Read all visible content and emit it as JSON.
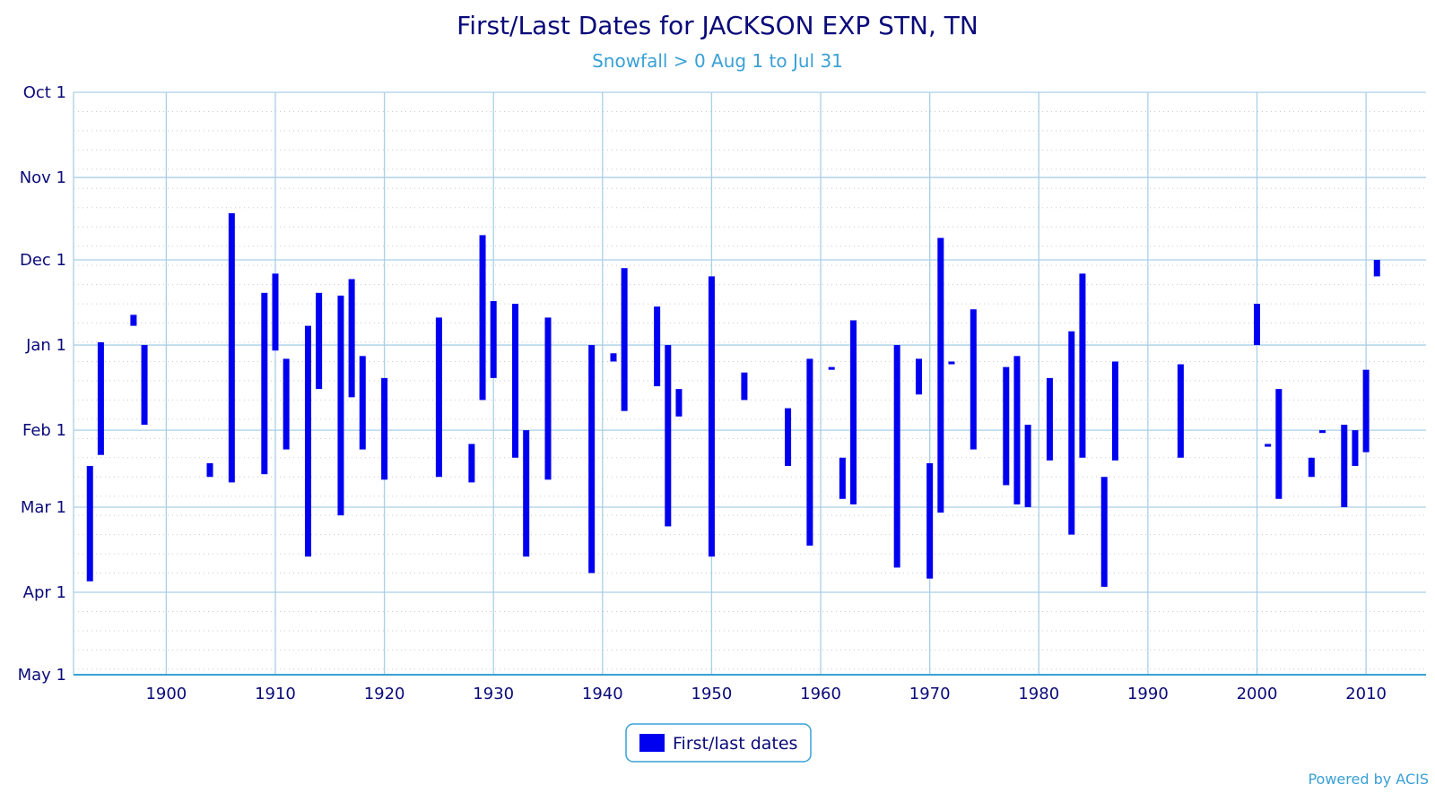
{
  "chart_data": {
    "type": "bar",
    "title": "First/Last Dates for JACKSON EXP STN, TN",
    "subtitle": "Snowfall > 0 Aug 1 to Jul 31",
    "legend": "First/last dates",
    "legend_position": "bottom-center",
    "credit": "Powered by ACIS",
    "y_axis": {
      "ticks": [
        "Oct 1",
        "Nov 1",
        "Dec 1",
        "Jan 1",
        "Feb 1",
        "Mar 1",
        "Apr 1",
        "May 1"
      ],
      "range_days_from_oct1": [
        0,
        212
      ]
    },
    "x_axis": {
      "ticks": [
        1900,
        1910,
        1920,
        1930,
        1940,
        1950,
        1960,
        1970,
        1980,
        1990,
        2000,
        2010
      ],
      "range": [
        1891.5,
        2015.5
      ]
    },
    "grid": true,
    "colors": {
      "bar": "#0000f0",
      "grid": "#aacfe6",
      "title": "#0a0a7a",
      "subtitle": "#39a0d6"
    },
    "series": [
      {
        "name": "First/last dates",
        "points": [
          {
            "year": 1893,
            "first": "Feb 14",
            "last": "Mar 28"
          },
          {
            "year": 1894,
            "first": "Dec 31",
            "last": "Feb 10"
          },
          {
            "year": 1897,
            "first": "Dec 21",
            "last": "Dec 25"
          },
          {
            "year": 1898,
            "first": "Jan 1",
            "last": "Jan 30"
          },
          {
            "year": 1904,
            "first": "Feb 13",
            "last": "Feb 18"
          },
          {
            "year": 1906,
            "first": "Nov 14",
            "last": "Feb 20"
          },
          {
            "year": 1909,
            "first": "Dec 13",
            "last": "Feb 17"
          },
          {
            "year": 1910,
            "first": "Dec 6",
            "last": "Jan 3"
          },
          {
            "year": 1911,
            "first": "Jan 6",
            "last": "Feb 8"
          },
          {
            "year": 1913,
            "first": "Dec 25",
            "last": "Mar 19"
          },
          {
            "year": 1914,
            "first": "Dec 13",
            "last": "Jan 17"
          },
          {
            "year": 1916,
            "first": "Dec 14",
            "last": "Mar 4"
          },
          {
            "year": 1917,
            "first": "Dec 8",
            "last": "Jan 20"
          },
          {
            "year": 1918,
            "first": "Jan 5",
            "last": "Feb 8"
          },
          {
            "year": 1920,
            "first": "Jan 13",
            "last": "Feb 19"
          },
          {
            "year": 1925,
            "first": "Dec 22",
            "last": "Feb 18"
          },
          {
            "year": 1928,
            "first": "Feb 6",
            "last": "Feb 20"
          },
          {
            "year": 1929,
            "first": "Nov 22",
            "last": "Jan 21"
          },
          {
            "year": 1930,
            "first": "Dec 16",
            "last": "Jan 13"
          },
          {
            "year": 1932,
            "first": "Dec 17",
            "last": "Feb 11"
          },
          {
            "year": 1933,
            "first": "Feb 1",
            "last": "Mar 19"
          },
          {
            "year": 1935,
            "first": "Dec 22",
            "last": "Feb 19"
          },
          {
            "year": 1939,
            "first": "Jan 1",
            "last": "Mar 25"
          },
          {
            "year": 1941,
            "first": "Jan 4",
            "last": "Jan 7"
          },
          {
            "year": 1942,
            "first": "Dec 4",
            "last": "Jan 25"
          },
          {
            "year": 1945,
            "first": "Dec 18",
            "last": "Jan 16"
          },
          {
            "year": 1946,
            "first": "Jan 1",
            "last": "Mar 8"
          },
          {
            "year": 1947,
            "first": "Jan 17",
            "last": "Jan 27"
          },
          {
            "year": 1950,
            "first": "Dec 7",
            "last": "Mar 19"
          },
          {
            "year": 1953,
            "first": "Jan 11",
            "last": "Jan 21"
          },
          {
            "year": 1957,
            "first": "Jan 24",
            "last": "Feb 14"
          },
          {
            "year": 1959,
            "first": "Jan 6",
            "last": "Mar 15"
          },
          {
            "year": 1961,
            "first": "Jan 9",
            "last": "Jan 10"
          },
          {
            "year": 1962,
            "first": "Feb 11",
            "last": "Feb 26"
          },
          {
            "year": 1963,
            "first": "Dec 23",
            "last": "Feb 28"
          },
          {
            "year": 1967,
            "first": "Jan 1",
            "last": "Mar 23"
          },
          {
            "year": 1969,
            "first": "Jan 6",
            "last": "Jan 19"
          },
          {
            "year": 1970,
            "first": "Feb 13",
            "last": "Mar 27"
          },
          {
            "year": 1971,
            "first": "Nov 23",
            "last": "Mar 3"
          },
          {
            "year": 1972,
            "first": "Jan 7",
            "last": "Jan 8"
          },
          {
            "year": 1974,
            "first": "Dec 19",
            "last": "Feb 8"
          },
          {
            "year": 1977,
            "first": "Jan 9",
            "last": "Feb 21"
          },
          {
            "year": 1978,
            "first": "Jan 5",
            "last": "Feb 28"
          },
          {
            "year": 1979,
            "first": "Jan 30",
            "last": "Mar 1"
          },
          {
            "year": 1981,
            "first": "Jan 13",
            "last": "Feb 12"
          },
          {
            "year": 1983,
            "first": "Dec 27",
            "last": "Mar 11"
          },
          {
            "year": 1984,
            "first": "Dec 6",
            "last": "Feb 11"
          },
          {
            "year": 1986,
            "first": "Feb 18",
            "last": "Mar 30"
          },
          {
            "year": 1987,
            "first": "Jan 7",
            "last": "Feb 12"
          },
          {
            "year": 1993,
            "first": "Jan 8",
            "last": "Feb 11"
          },
          {
            "year": 2000,
            "first": "Dec 17",
            "last": "Jan 1"
          },
          {
            "year": 2001,
            "first": "Feb 6",
            "last": "Feb 7"
          },
          {
            "year": 2002,
            "first": "Jan 17",
            "last": "Feb 26"
          },
          {
            "year": 2005,
            "first": "Feb 11",
            "last": "Feb 18"
          },
          {
            "year": 2006,
            "first": "Feb 1",
            "last": "Feb 2"
          },
          {
            "year": 2008,
            "first": "Jan 30",
            "last": "Mar 1"
          },
          {
            "year": 2009,
            "first": "Feb 1",
            "last": "Feb 14"
          },
          {
            "year": 2010,
            "first": "Jan 10",
            "last": "Feb 9"
          },
          {
            "year": 2011,
            "first": "Dec 1",
            "last": "Dec 7"
          }
        ]
      }
    ]
  }
}
